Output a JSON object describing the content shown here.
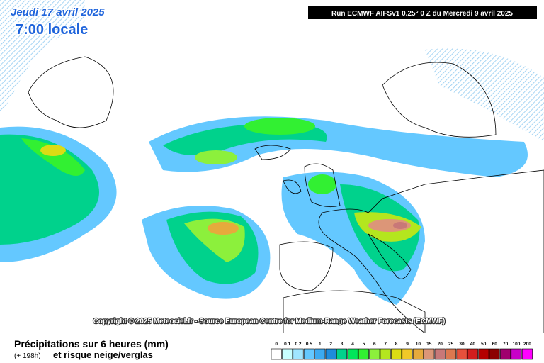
{
  "header": {
    "date": "Jeudi 17 avril 2025",
    "time": "7:00 locale",
    "run": "Run ECMWF AIFSv1 0.25° 0 Z du Mercredi 9 avril 2025"
  },
  "copyright": "Copyright © 2025 Meteociel.fr - Source European Centre for Medium-Range Weather Forecasts (ECMWF)",
  "legend": {
    "title": "Précipitations sur 6 heures (mm)",
    "lead": "(+ 198h)",
    "subtitle": "et risque neige/verglas",
    "scale": [
      {
        "label": "0",
        "color": "#ffffff"
      },
      {
        "label": "0.1",
        "color": "#c8ffff"
      },
      {
        "label": "0.2",
        "color": "#a0e6ff"
      },
      {
        "label": "0.5",
        "color": "#64c8ff"
      },
      {
        "label": "1",
        "color": "#3caaf0"
      },
      {
        "label": "2",
        "color": "#1e8cdc"
      },
      {
        "label": "3",
        "color": "#00d28c"
      },
      {
        "label": "4",
        "color": "#00e65a"
      },
      {
        "label": "5",
        "color": "#32f032"
      },
      {
        "label": "6",
        "color": "#8cf03c"
      },
      {
        "label": "7",
        "color": "#b4e61e"
      },
      {
        "label": "8",
        "color": "#dcdc14"
      },
      {
        "label": "9",
        "color": "#f0c828"
      },
      {
        "label": "10",
        "color": "#e6aa3c"
      },
      {
        "label": "15",
        "color": "#dc9678"
      },
      {
        "label": "20",
        "color": "#c87878"
      },
      {
        "label": "25",
        "color": "#dc7850"
      },
      {
        "label": "30",
        "color": "#e6503c"
      },
      {
        "label": "40",
        "color": "#d21e1e"
      },
      {
        "label": "50",
        "color": "#b40000"
      },
      {
        "label": "60",
        "color": "#8c0000"
      },
      {
        "label": "70",
        "color": "#a0006e"
      },
      {
        "label": "100",
        "color": "#c800c8"
      },
      {
        "label": "200",
        "color": "#ff00ff"
      }
    ]
  }
}
